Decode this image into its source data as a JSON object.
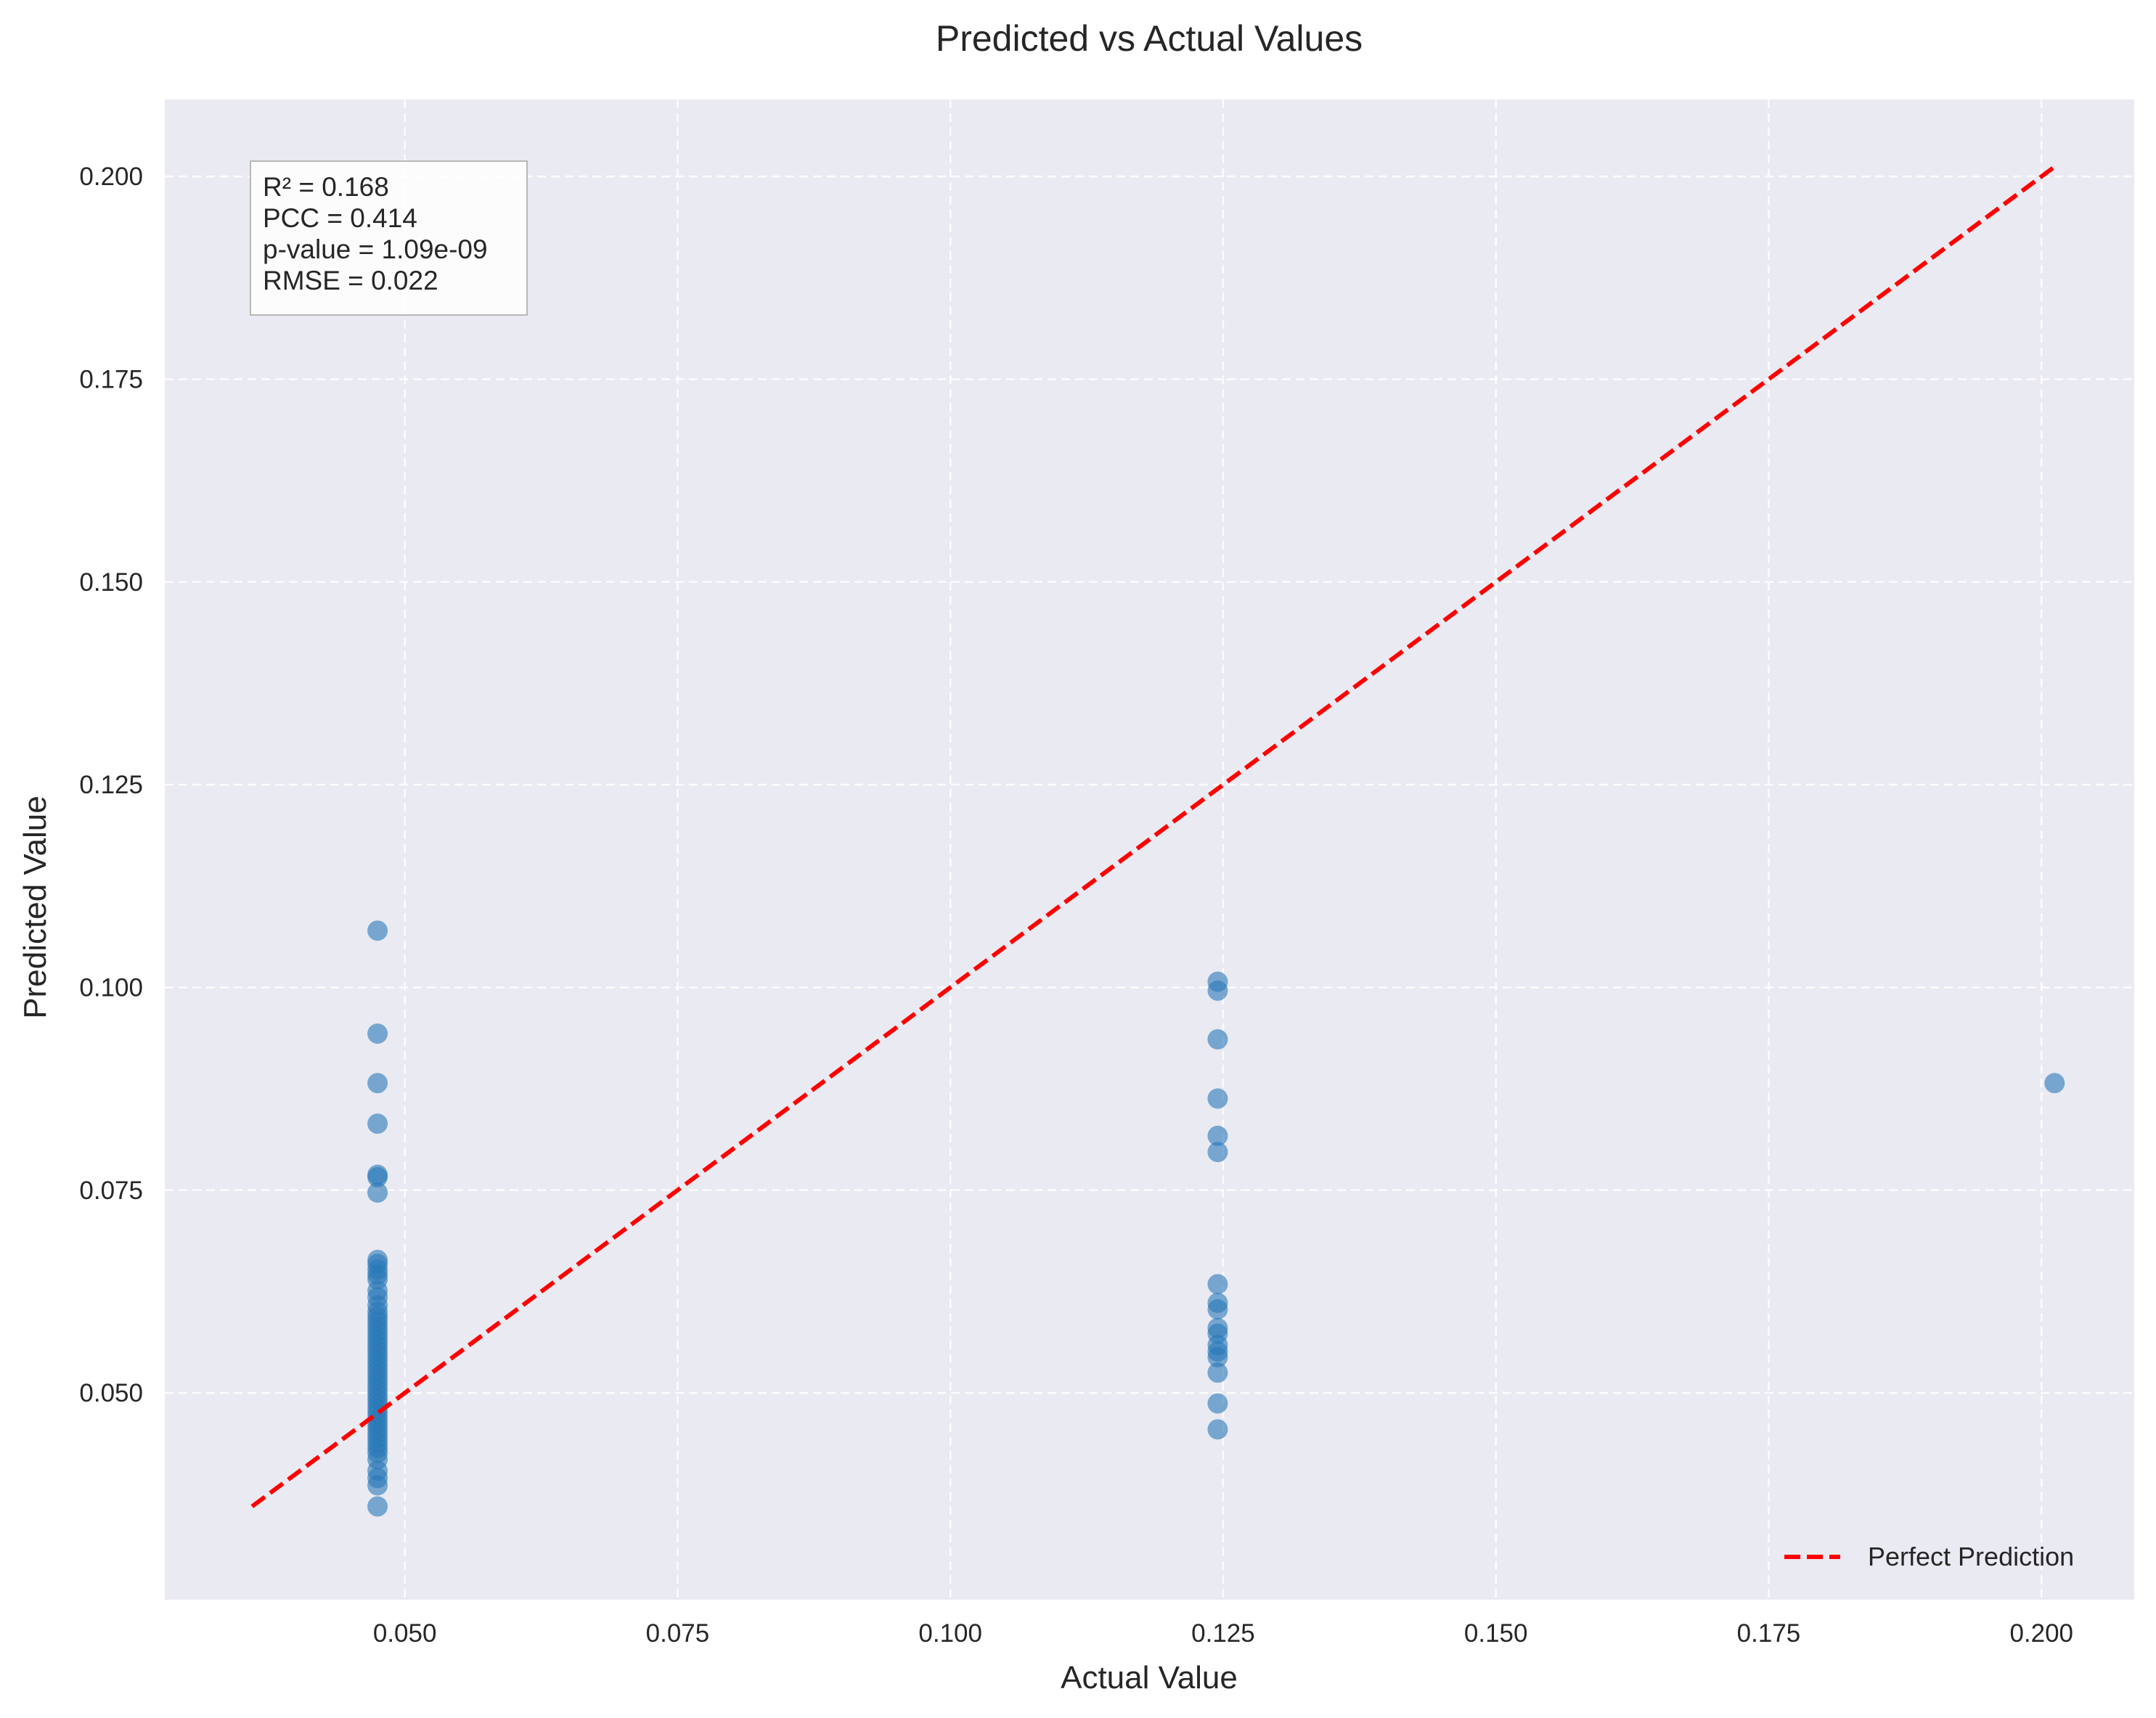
{
  "chart_data": {
    "type": "scatter",
    "title": "Predicted vs Actual Values",
    "xlabel": "Actual Value",
    "ylabel": "Predicted Value",
    "xlim": [
      0.028,
      0.2085
    ],
    "ylim": [
      0.0245,
      0.2095
    ],
    "x_ticks": [
      0.05,
      0.075,
      0.1,
      0.125,
      0.15,
      0.175,
      0.2
    ],
    "y_ticks": [
      0.05,
      0.075,
      0.1,
      0.125,
      0.15,
      0.175,
      0.2
    ],
    "tick_labels_x": [
      "0.050",
      "0.075",
      "0.100",
      "0.125",
      "0.150",
      "0.175",
      "0.200"
    ],
    "tick_labels_y": [
      "0.050",
      "0.075",
      "0.100",
      "0.125",
      "0.150",
      "0.175",
      "0.200"
    ],
    "grid": true,
    "background_color": "#eaeaf2",
    "point_color": "#2878b8",
    "line_color": "#ff0000",
    "series": [
      {
        "kind": "points",
        "points": [
          [
            0.0475,
            0.107
          ],
          [
            0.0475,
            0.0943
          ],
          [
            0.0475,
            0.0882
          ],
          [
            0.0475,
            0.0832
          ],
          [
            0.0475,
            0.0769
          ],
          [
            0.0475,
            0.0766
          ],
          [
            0.0475,
            0.0747
          ],
          [
            0.0475,
            0.0664
          ],
          [
            0.0475,
            0.0659
          ],
          [
            0.0475,
            0.0652
          ],
          [
            0.0475,
            0.0646
          ],
          [
            0.0475,
            0.064
          ],
          [
            0.0475,
            0.0626
          ],
          [
            0.0475,
            0.0618
          ],
          [
            0.0475,
            0.0608
          ],
          [
            0.0475,
            0.06
          ],
          [
            0.0475,
            0.0594
          ],
          [
            0.0475,
            0.0588
          ],
          [
            0.0475,
            0.0582
          ],
          [
            0.0475,
            0.0576
          ],
          [
            0.0475,
            0.057
          ],
          [
            0.0475,
            0.0564
          ],
          [
            0.0475,
            0.0558
          ],
          [
            0.0475,
            0.0552
          ],
          [
            0.0475,
            0.0546
          ],
          [
            0.0475,
            0.054
          ],
          [
            0.0475,
            0.0534
          ],
          [
            0.0475,
            0.0528
          ],
          [
            0.0475,
            0.0522
          ],
          [
            0.0475,
            0.0516
          ],
          [
            0.0475,
            0.051
          ],
          [
            0.0475,
            0.0504
          ],
          [
            0.0475,
            0.0498
          ],
          [
            0.0475,
            0.0492
          ],
          [
            0.0475,
            0.0486
          ],
          [
            0.0475,
            0.048
          ],
          [
            0.0475,
            0.0474
          ],
          [
            0.0475,
            0.0468
          ],
          [
            0.0475,
            0.0462
          ],
          [
            0.0475,
            0.0456
          ],
          [
            0.0475,
            0.045
          ],
          [
            0.0475,
            0.0444
          ],
          [
            0.0475,
            0.0438
          ],
          [
            0.0475,
            0.0432
          ],
          [
            0.0475,
            0.0426
          ],
          [
            0.0475,
            0.0418
          ],
          [
            0.0475,
            0.0404
          ],
          [
            0.0475,
            0.0395
          ],
          [
            0.0475,
            0.0386
          ],
          [
            0.0475,
            0.036
          ],
          [
            0.1245,
            0.1007
          ],
          [
            0.1245,
            0.0996
          ],
          [
            0.1245,
            0.0936
          ],
          [
            0.1245,
            0.0863
          ],
          [
            0.1245,
            0.0817
          ],
          [
            0.1245,
            0.0797
          ],
          [
            0.1245,
            0.0634
          ],
          [
            0.1245,
            0.0611
          ],
          [
            0.1245,
            0.0603
          ],
          [
            0.1245,
            0.058
          ],
          [
            0.1245,
            0.0573
          ],
          [
            0.1245,
            0.0559
          ],
          [
            0.1245,
            0.0551
          ],
          [
            0.1245,
            0.0544
          ],
          [
            0.1245,
            0.0525
          ],
          [
            0.1245,
            0.0487
          ],
          [
            0.1245,
            0.0455
          ],
          [
            0.2012,
            0.0882
          ]
        ]
      },
      {
        "kind": "line",
        "name": "Perfect Prediction",
        "x": [
          0.036,
          0.2012
        ],
        "y": [
          0.036,
          0.2012
        ]
      }
    ],
    "legend": {
      "position": "bottom-right",
      "entries": [
        "Perfect Prediction"
      ]
    },
    "stats_box": {
      "position": "top-left",
      "lines": [
        "R² = 0.168",
        "PCC = 0.414",
        "p-value = 1.09e-09",
        "RMSE = 0.022"
      ]
    }
  }
}
